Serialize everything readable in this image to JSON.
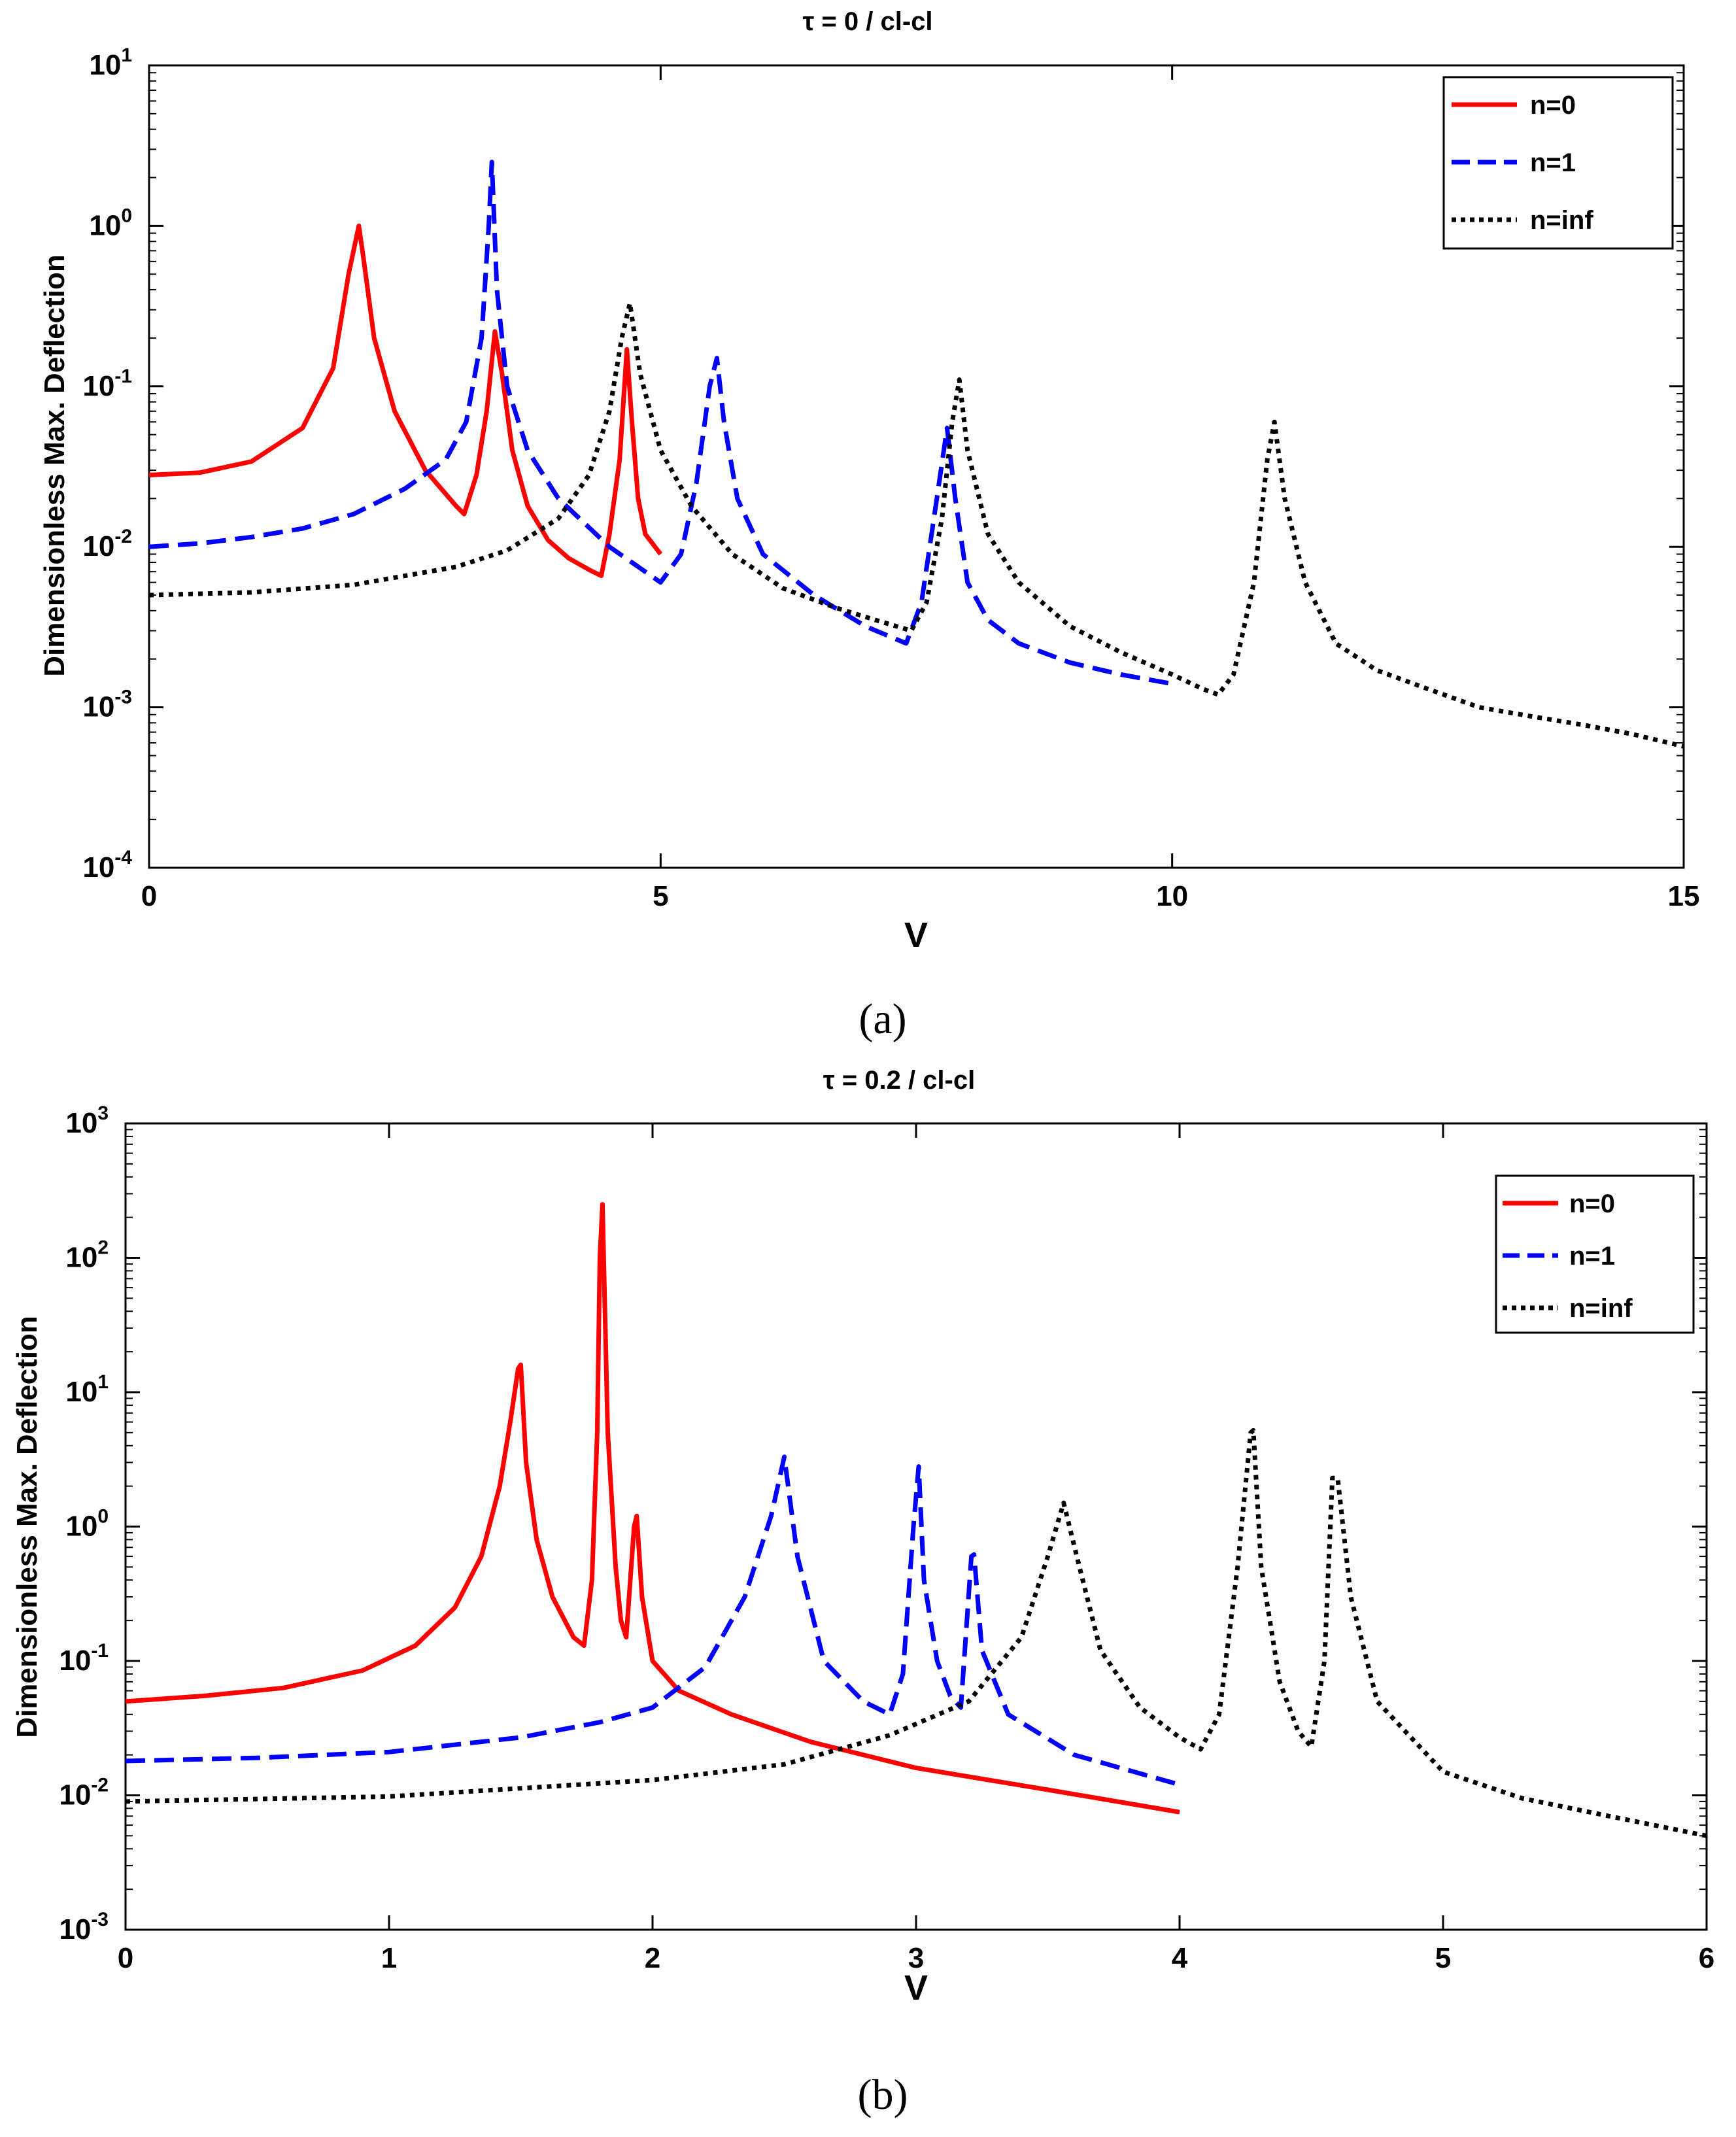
{
  "chart_data": [
    {
      "type": "line",
      "title": "τ = 0 / cl-cl",
      "xlabel": "V",
      "ylabel": "Dimensionless Max. Deflection",
      "xlim": [
        0,
        15
      ],
      "ylim": [
        0.0001,
        10
      ],
      "yscale": "log",
      "xticks": [
        "0",
        "5",
        "10",
        "15"
      ],
      "yticks": [
        {
          "base": "10",
          "exp": "-4"
        },
        {
          "base": "10",
          "exp": "-3"
        },
        {
          "base": "10",
          "exp": "-2"
        },
        {
          "base": "10",
          "exp": "-1"
        },
        {
          "base": "10",
          "exp": "0"
        },
        {
          "base": "10",
          "exp": "1"
        }
      ],
      "legend_position": "top-right",
      "caption": "(a)",
      "series": [
        {
          "name": "n=0",
          "color": "#ff0000",
          "dash": "solid",
          "x": [
            0,
            0.5,
            1.0,
            1.5,
            1.8,
            1.95,
            2.05,
            2.1,
            2.2,
            2.4,
            2.7,
            3.0,
            3.08,
            3.2,
            3.3,
            3.38,
            3.45,
            3.55,
            3.7,
            3.9,
            4.1,
            4.3,
            4.42,
            4.5,
            4.6,
            4.67,
            4.72,
            4.78,
            4.85,
            5.0
          ],
          "y": [
            0.028,
            0.029,
            0.034,
            0.055,
            0.13,
            0.5,
            1.0,
            0.6,
            0.2,
            0.07,
            0.03,
            0.018,
            0.016,
            0.028,
            0.07,
            0.22,
            0.12,
            0.04,
            0.018,
            0.011,
            0.0085,
            0.0072,
            0.0066,
            0.012,
            0.035,
            0.17,
            0.06,
            0.02,
            0.012,
            0.009
          ]
        },
        {
          "name": "n=1",
          "color": "#0000ff",
          "dash": "dashed",
          "x": [
            0,
            0.5,
            1.0,
            1.5,
            2.0,
            2.5,
            2.9,
            3.1,
            3.25,
            3.32,
            3.35,
            3.4,
            3.5,
            3.7,
            4.0,
            4.5,
            5.0,
            5.2,
            5.35,
            5.48,
            5.55,
            5.62,
            5.75,
            6.0,
            6.5,
            7.0,
            7.4,
            7.55,
            7.7,
            7.8,
            7.88,
            8.0,
            8.2,
            8.5,
            9.0,
            9.5,
            10.0
          ],
          "y": [
            0.01,
            0.0105,
            0.0115,
            0.013,
            0.016,
            0.023,
            0.035,
            0.06,
            0.2,
            1.0,
            2.5,
            0.4,
            0.1,
            0.04,
            0.02,
            0.01,
            0.006,
            0.009,
            0.025,
            0.1,
            0.15,
            0.06,
            0.02,
            0.009,
            0.005,
            0.0032,
            0.0025,
            0.0045,
            0.02,
            0.055,
            0.02,
            0.006,
            0.0035,
            0.0025,
            0.0019,
            0.0016,
            0.0014
          ]
        },
        {
          "name": "n=inf",
          "color": "#000000",
          "dash": "dotted",
          "x": [
            0,
            1.0,
            2.0,
            3.0,
            3.5,
            4.0,
            4.3,
            4.5,
            4.62,
            4.7,
            4.8,
            5.0,
            5.3,
            5.7,
            6.2,
            6.7,
            7.1,
            7.45,
            7.6,
            7.75,
            7.85,
            7.92,
            8.0,
            8.2,
            8.5,
            9.0,
            9.5,
            10.0,
            10.3,
            10.45,
            10.6,
            10.8,
            10.93,
            11.0,
            11.1,
            11.3,
            11.6,
            12.0,
            12.5,
            13.0,
            13.5,
            14.0,
            14.5,
            15.0
          ],
          "y": [
            0.005,
            0.0052,
            0.0058,
            0.0075,
            0.0095,
            0.015,
            0.028,
            0.07,
            0.2,
            0.33,
            0.12,
            0.04,
            0.018,
            0.009,
            0.0055,
            0.0042,
            0.0035,
            0.003,
            0.0045,
            0.015,
            0.06,
            0.11,
            0.04,
            0.012,
            0.006,
            0.0032,
            0.0022,
            0.0016,
            0.0013,
            0.0012,
            0.0016,
            0.006,
            0.035,
            0.06,
            0.02,
            0.006,
            0.0025,
            0.0017,
            0.0013,
            0.001,
            0.00088,
            0.00078,
            0.00068,
            0.00057
          ]
        }
      ]
    },
    {
      "type": "line",
      "title": "τ = 0.2 / cl-cl",
      "xlabel": "V",
      "ylabel": "Dimensionless Max. Deflection",
      "xlim": [
        0,
        6
      ],
      "ylim": [
        0.001,
        1000
      ],
      "yscale": "log",
      "xticks": [
        "0",
        "1",
        "2",
        "3",
        "4",
        "5",
        "6"
      ],
      "yticks": [
        {
          "base": "10",
          "exp": "-3"
        },
        {
          "base": "10",
          "exp": "-2"
        },
        {
          "base": "10",
          "exp": "-1"
        },
        {
          "base": "10",
          "exp": "0"
        },
        {
          "base": "10",
          "exp": "1"
        },
        {
          "base": "10",
          "exp": "2"
        },
        {
          "base": "10",
          "exp": "3"
        }
      ],
      "legend_position": "upper-right",
      "caption": "(b)",
      "series": [
        {
          "name": "n=0",
          "color": "#ff0000",
          "dash": "solid",
          "x": [
            0,
            0.3,
            0.6,
            0.9,
            1.1,
            1.25,
            1.35,
            1.42,
            1.46,
            1.49,
            1.5,
            1.52,
            1.56,
            1.62,
            1.7,
            1.74,
            1.77,
            1.79,
            1.8,
            1.81,
            1.83,
            1.86,
            1.88,
            1.9,
            1.93,
            1.94,
            1.96,
            2.0,
            2.1,
            2.3,
            2.6,
            3.0,
            3.5,
            4.0
          ],
          "y": [
            0.05,
            0.055,
            0.063,
            0.085,
            0.13,
            0.25,
            0.6,
            2.0,
            6.0,
            15.0,
            16.0,
            3.0,
            0.8,
            0.3,
            0.15,
            0.13,
            0.4,
            5.0,
            100.0,
            250.0,
            5.0,
            0.5,
            0.2,
            0.15,
            1.0,
            1.2,
            0.3,
            0.1,
            0.06,
            0.04,
            0.025,
            0.016,
            0.011,
            0.0075
          ]
        },
        {
          "name": "n=1",
          "color": "#0000ff",
          "dash": "dashed",
          "x": [
            0,
            0.5,
            1.0,
            1.5,
            1.8,
            2.0,
            2.2,
            2.35,
            2.45,
            2.5,
            2.55,
            2.65,
            2.8,
            2.9,
            2.95,
            2.99,
            3.01,
            3.03,
            3.08,
            3.13,
            3.17,
            3.21,
            3.22,
            3.25,
            3.35,
            3.6,
            4.0
          ],
          "y": [
            0.018,
            0.019,
            0.021,
            0.027,
            0.035,
            0.045,
            0.09,
            0.3,
            1.2,
            3.3,
            0.6,
            0.1,
            0.05,
            0.04,
            0.08,
            1.0,
            2.8,
            0.4,
            0.1,
            0.055,
            0.045,
            0.6,
            0.62,
            0.12,
            0.04,
            0.02,
            0.012
          ]
        },
        {
          "name": "n=inf",
          "color": "#000000",
          "dash": "dotted",
          "x": [
            0,
            1.0,
            2.0,
            2.5,
            2.9,
            3.2,
            3.4,
            3.5,
            3.56,
            3.62,
            3.7,
            3.85,
            4.0,
            4.08,
            4.15,
            4.22,
            4.27,
            4.28,
            4.31,
            4.38,
            4.45,
            4.5,
            4.55,
            4.58,
            4.6,
            4.65,
            4.75,
            5.0,
            5.3,
            5.6,
            6.0
          ],
          "y": [
            0.009,
            0.0098,
            0.013,
            0.017,
            0.028,
            0.05,
            0.15,
            0.6,
            1.5,
            0.5,
            0.12,
            0.045,
            0.027,
            0.022,
            0.04,
            0.5,
            5.0,
            5.2,
            0.5,
            0.07,
            0.03,
            0.023,
            0.1,
            2.3,
            2.3,
            0.3,
            0.05,
            0.015,
            0.0095,
            0.0072,
            0.005
          ]
        }
      ]
    }
  ]
}
